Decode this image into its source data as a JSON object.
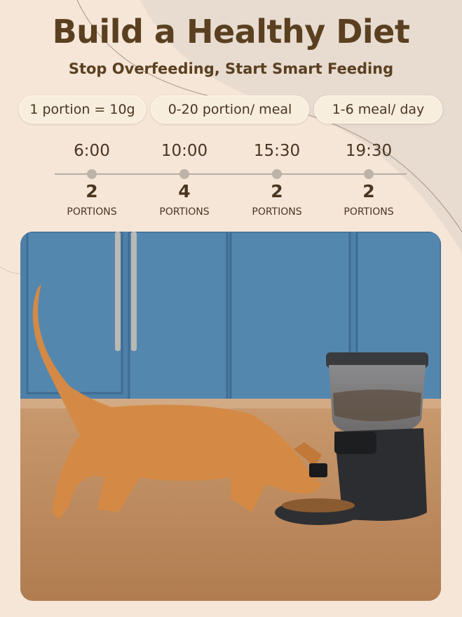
{
  "header": {
    "title": "Build a Healthy Diet",
    "subtitle": "Stop Overfeeding, Start Smart Feeding"
  },
  "specs": [
    {
      "label": "1 portion = 10g"
    },
    {
      "label": "0-20 portion/ meal"
    },
    {
      "label": "1-6 meal/ day"
    }
  ],
  "schedule": [
    {
      "time": "6:00",
      "portions": "2",
      "unit": "PORTIONS"
    },
    {
      "time": "10:00",
      "portions": "4",
      "unit": "PORTIONS"
    },
    {
      "time": "15:30",
      "portions": "2",
      "unit": "PORTIONS"
    },
    {
      "time": "19:30",
      "portions": "2",
      "unit": "PORTIONS"
    }
  ],
  "colors": {
    "text": "#5a4020",
    "background": "#f6e6d8",
    "cabinet": "#4d7fa6",
    "feeder": "#2c2d30"
  }
}
